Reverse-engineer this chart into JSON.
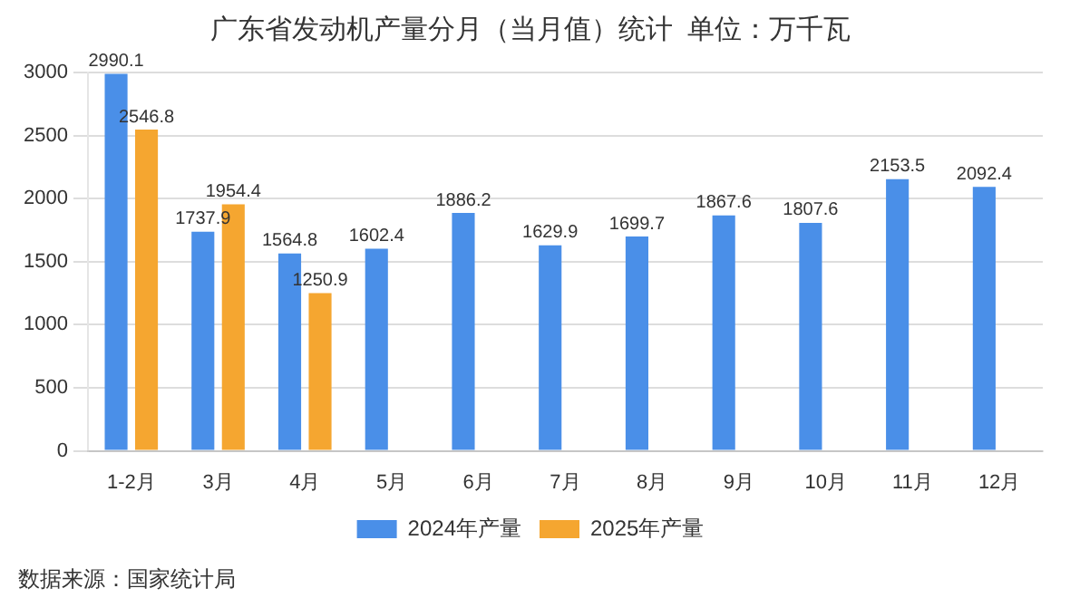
{
  "chart_data": {
    "type": "bar",
    "title": "广东省发动机产量分月（当月值）统计  单位：万千瓦",
    "categories": [
      "1-2月",
      "3月",
      "4月",
      "5月",
      "6月",
      "7月",
      "8月",
      "9月",
      "10月",
      "11月",
      "12月"
    ],
    "series": [
      {
        "name": "2024年产量",
        "color": "#4a8fe8",
        "values": [
          2990.1,
          1737.9,
          1564.8,
          1602.4,
          1886.2,
          1629.9,
          1699.7,
          1867.6,
          1807.6,
          2153.5,
          2092.4
        ]
      },
      {
        "name": "2025年产量",
        "color": "#f5a630",
        "values": [
          2546.8,
          1954.4,
          1250.9,
          null,
          null,
          null,
          null,
          null,
          null,
          null,
          null
        ]
      }
    ],
    "ylim": [
      0,
      3000
    ],
    "yticks": [
      0,
      500,
      1000,
      1500,
      2000,
      2500,
      3000
    ],
    "grid": "y",
    "legend": "bottom",
    "data_labels": true,
    "annotations": [
      "数据来源：国家统计局"
    ]
  }
}
